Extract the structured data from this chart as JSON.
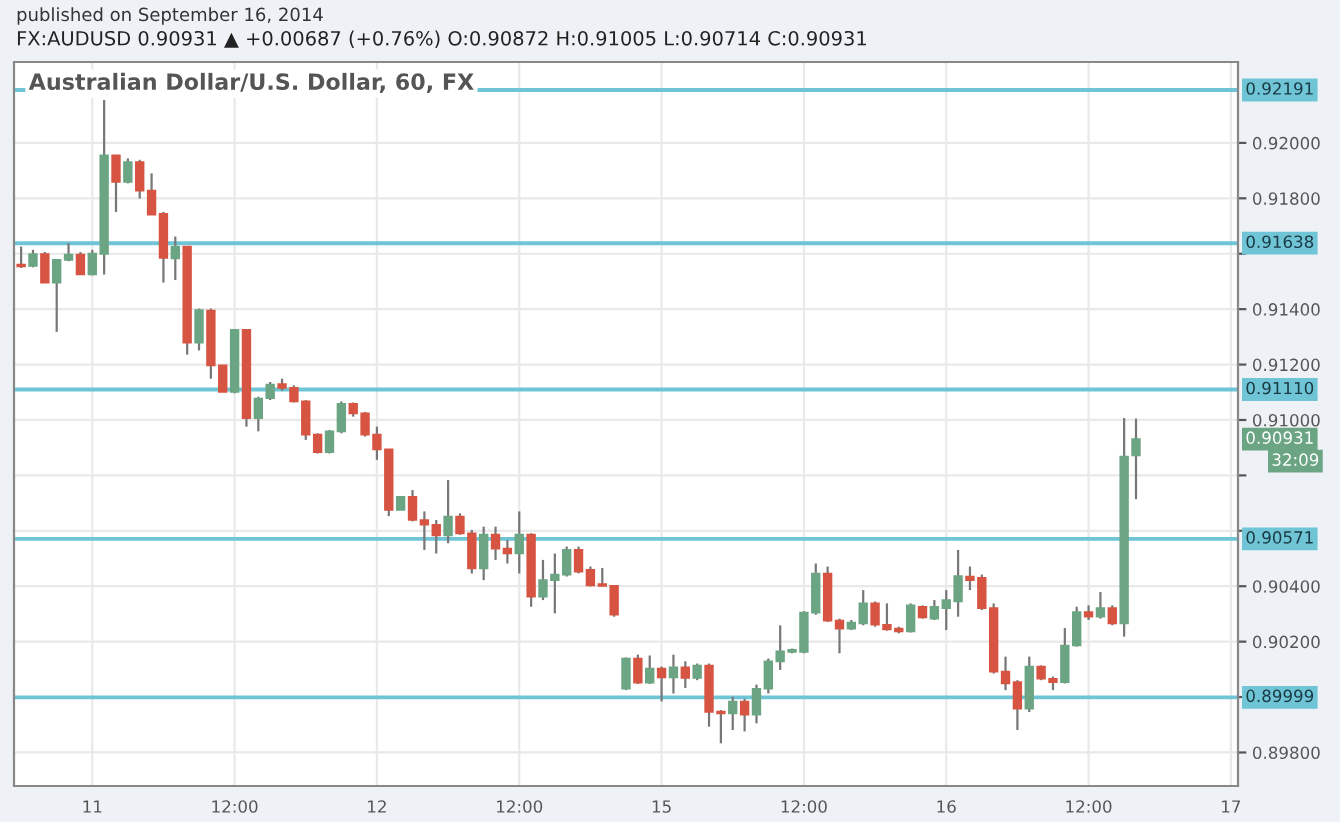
{
  "chart_data": {
    "type": "candlestick",
    "title": "Australian Dollar/U.S. Dollar, 60, FX",
    "subtitle": "FX:AUDUSD 0.90931 ▲ +0.00687 (+0.76%) O:0.90872 H:0.91005 L:0.90714 C:0.90931",
    "annotations": [
      "published on September 16, 2014",
      "0.90931",
      "32:09"
    ],
    "categories": [
      null,
      null,
      null,
      null,
      null,
      null,
      "11",
      null,
      null,
      null,
      null,
      null,
      null,
      null,
      null,
      null,
      null,
      null,
      "12:00",
      null,
      null,
      null,
      null,
      null,
      null,
      null,
      null,
      null,
      null,
      null,
      "12",
      null,
      null,
      null,
      null,
      null,
      null,
      null,
      null,
      null,
      null,
      null,
      "12:00",
      null,
      null,
      null,
      null,
      null,
      null,
      null,
      null,
      null,
      null,
      null,
      "15",
      null,
      null,
      null,
      null,
      null,
      null,
      null,
      null,
      null,
      null,
      null,
      "12:00",
      null,
      null,
      null,
      null,
      null,
      null,
      null,
      null,
      null,
      null,
      null,
      "16",
      null,
      null,
      null,
      null,
      null,
      null,
      null,
      null,
      null,
      null,
      null,
      "12:00",
      null,
      null,
      null,
      null,
      null,
      null,
      null,
      null,
      null,
      null,
      null,
      "17"
    ],
    "ohlc": [
      [
        0.91561,
        0.91626,
        0.91549,
        0.91554
      ],
      [
        0.91556,
        0.91614,
        0.91551,
        0.91599
      ],
      [
        0.91599,
        0.91606,
        0.91496,
        0.91496
      ],
      [
        0.91496,
        0.91578,
        0.91318,
        0.91578
      ],
      [
        0.91578,
        0.91638,
        0.91573,
        0.91597
      ],
      [
        0.91597,
        0.91606,
        0.91525,
        0.91525
      ],
      [
        0.91525,
        0.91614,
        0.91522,
        0.91601
      ],
      [
        0.91599,
        0.92155,
        0.91525,
        0.91955
      ],
      [
        0.91955,
        0.91955,
        0.91751,
        0.91859
      ],
      [
        0.91859,
        0.91944,
        0.91854,
        0.91931
      ],
      [
        0.91931,
        0.91939,
        0.91799,
        0.91828
      ],
      [
        0.91828,
        0.9189,
        0.91741,
        0.91741
      ],
      [
        0.91744,
        0.91751,
        0.91496,
        0.91585
      ],
      [
        0.91583,
        0.91662,
        0.91505,
        0.91626
      ],
      [
        0.91626,
        0.91626,
        0.91236,
        0.91279
      ],
      [
        0.91279,
        0.91402,
        0.91251,
        0.91397
      ],
      [
        0.91395,
        0.91402,
        0.91149,
        0.91197
      ],
      [
        0.91197,
        0.91197,
        0.91101,
        0.91101
      ],
      [
        0.91101,
        0.91325,
        0.91096,
        0.91325
      ],
      [
        0.91325,
        0.91325,
        0.90976,
        0.91007
      ],
      [
        0.91007,
        0.91084,
        0.90959,
        0.91077
      ],
      [
        0.91079,
        0.91137,
        0.91072,
        0.91128
      ],
      [
        0.9113,
        0.91149,
        0.91106,
        0.91116
      ],
      [
        0.91116,
        0.91125,
        0.91063,
        0.91067
      ],
      [
        0.91067,
        0.91072,
        0.90928,
        0.90947
      ],
      [
        0.90947,
        0.90952,
        0.90879,
        0.90884
      ],
      [
        0.90884,
        0.90964,
        0.90879,
        0.90959
      ],
      [
        0.90959,
        0.91067,
        0.90952,
        0.91058
      ],
      [
        0.91058,
        0.91063,
        0.91012,
        0.91024
      ],
      [
        0.91024,
        0.91029,
        0.9094,
        0.90947
      ],
      [
        0.90947,
        0.90976,
        0.90856,
        0.90894
      ],
      [
        0.90894,
        0.90894,
        0.90653,
        0.90675
      ],
      [
        0.90675,
        0.90723,
        0.90675,
        0.90723
      ],
      [
        0.90723,
        0.90747,
        0.90634,
        0.90639
      ],
      [
        0.90639,
        0.9067,
        0.90531,
        0.90622
      ],
      [
        0.90622,
        0.90639,
        0.90518,
        0.90583
      ],
      [
        0.90583,
        0.90783,
        0.90555,
        0.90651
      ],
      [
        0.90651,
        0.90663,
        0.90586,
        0.90591
      ],
      [
        0.90591,
        0.90603,
        0.90446,
        0.90464
      ],
      [
        0.90464,
        0.90615,
        0.90422,
        0.90586
      ],
      [
        0.90586,
        0.90615,
        0.90495,
        0.90536
      ],
      [
        0.90536,
        0.90567,
        0.90482,
        0.90518
      ],
      [
        0.90518,
        0.9067,
        0.90446,
        0.90586
      ],
      [
        0.90586,
        0.90591,
        0.90326,
        0.90362
      ],
      [
        0.90362,
        0.90495,
        0.9035,
        0.90422
      ],
      [
        0.90422,
        0.90518,
        0.90302,
        0.90442
      ],
      [
        0.90442,
        0.90543,
        0.90435,
        0.90531
      ],
      [
        0.90531,
        0.90543,
        0.90446,
        0.90453
      ],
      [
        0.90459,
        0.90471,
        0.90399,
        0.90403
      ],
      [
        0.90408,
        0.90466,
        0.90399,
        0.90401
      ],
      [
        0.90401,
        0.90401,
        0.9029,
        0.90297
      ],
      [
        0.9003,
        0.90143,
        0.90025,
        0.90139
      ],
      [
        0.90139,
        0.90153,
        0.90047,
        0.90052
      ],
      [
        0.90052,
        0.9015,
        0.90047,
        0.90103
      ],
      [
        0.90103,
        0.9011,
        0.89984,
        0.90071
      ],
      [
        0.90071,
        0.90153,
        0.90013,
        0.90107
      ],
      [
        0.90107,
        0.90129,
        0.90033,
        0.90069
      ],
      [
        0.90069,
        0.90121,
        0.90061,
        0.90114
      ],
      [
        0.90114,
        0.90121,
        0.89893,
        0.89946
      ],
      [
        0.89948,
        0.89953,
        0.89833,
        0.89941
      ],
      [
        0.89941,
        0.90001,
        0.89881,
        0.89984
      ],
      [
        0.89984,
        0.89994,
        0.89876,
        0.89936
      ],
      [
        0.89936,
        0.90045,
        0.89905,
        0.9003
      ],
      [
        0.9003,
        0.90139,
        0.90013,
        0.90129
      ],
      [
        0.90129,
        0.90259,
        0.90098,
        0.90165
      ],
      [
        0.90163,
        0.90175,
        0.90158,
        0.9017
      ],
      [
        0.90163,
        0.9031,
        0.90158,
        0.90305
      ],
      [
        0.90305,
        0.90482,
        0.90297,
        0.90446
      ],
      [
        0.90446,
        0.90471,
        0.90271,
        0.90276
      ],
      [
        0.90276,
        0.90283,
        0.90158,
        0.90247
      ],
      [
        0.90247,
        0.90278,
        0.90242,
        0.90269
      ],
      [
        0.90266,
        0.90386,
        0.90259,
        0.90338
      ],
      [
        0.90338,
        0.90345,
        0.90254,
        0.90261
      ],
      [
        0.90261,
        0.90338,
        0.9024,
        0.90244
      ],
      [
        0.90247,
        0.90254,
        0.9023,
        0.90237
      ],
      [
        0.90237,
        0.90338,
        0.90233,
        0.90331
      ],
      [
        0.90326,
        0.90331,
        0.90283,
        0.90287
      ],
      [
        0.90283,
        0.9035,
        0.90278,
        0.90326
      ],
      [
        0.90321,
        0.90386,
        0.90242,
        0.9035
      ],
      [
        0.90345,
        0.90531,
        0.9029,
        0.90437
      ],
      [
        0.90435,
        0.90471,
        0.90386,
        0.90422
      ],
      [
        0.9043,
        0.90442,
        0.90314,
        0.90321
      ],
      [
        0.90321,
        0.90338,
        0.90085,
        0.90092
      ],
      [
        0.90092,
        0.90146,
        0.90025,
        0.90049
      ],
      [
        0.90054,
        0.90061,
        0.89881,
        0.89958
      ],
      [
        0.89958,
        0.90146,
        0.89946,
        0.9011
      ],
      [
        0.9011,
        0.90114,
        0.90061,
        0.90066
      ],
      [
        0.90066,
        0.90074,
        0.90025,
        0.90054
      ],
      [
        0.90054,
        0.90249,
        0.90049,
        0.90186
      ],
      [
        0.90186,
        0.90326,
        0.90182,
        0.90307
      ],
      [
        0.90307,
        0.90331,
        0.90278,
        0.9029
      ],
      [
        0.9029,
        0.90379,
        0.90283,
        0.90321
      ],
      [
        0.90321,
        0.90331,
        0.90259,
        0.90266
      ],
      [
        0.90266,
        0.91007,
        0.90218,
        0.90868
      ],
      [
        0.90872,
        0.91005,
        0.90714,
        0.90931
      ],
      null,
      null,
      null,
      null,
      null,
      null,
      null,
      null
    ],
    "colors": [
      "#d75442",
      "#6ba583",
      "#d75442",
      "#6ba583",
      "#6ba583",
      "#d75442",
      "#6ba583",
      "#6ba583",
      "#d75442",
      "#6ba583",
      "#d75442",
      "#d75442",
      "#d75442",
      "#6ba583",
      "#d75442",
      "#6ba583",
      "#d75442",
      "#d75442",
      "#6ba583",
      "#d75442",
      "#6ba583",
      "#6ba583",
      "#d75442",
      "#d75442",
      "#d75442",
      "#d75442",
      "#6ba583",
      "#6ba583",
      "#d75442",
      "#d75442",
      "#d75442",
      "#d75442",
      "#6ba583",
      "#d75442",
      "#d75442",
      "#d75442",
      "#6ba583",
      "#d75442",
      "#d75442",
      "#6ba583",
      "#d75442",
      "#d75442",
      "#6ba583",
      "#d75442",
      "#6ba583",
      "#6ba583",
      "#6ba583",
      "#d75442",
      "#d75442",
      "#d75442",
      "#d75442",
      "#6ba583",
      "#d75442",
      "#6ba583",
      "#d75442",
      "#6ba583",
      "#d75442",
      "#6ba583",
      "#d75442",
      "#d75442",
      "#6ba583",
      "#d75442",
      "#6ba583",
      "#6ba583",
      "#6ba583",
      "#6ba583",
      "#6ba583",
      "#6ba583",
      "#d75442",
      "#d75442",
      "#6ba583",
      "#6ba583",
      "#d75442",
      "#d75442",
      "#d75442",
      "#6ba583",
      "#d75442",
      "#6ba583",
      "#6ba583",
      "#6ba583",
      "#d75442",
      "#d75442",
      "#d75442",
      "#d75442",
      "#d75442",
      "#6ba583",
      "#d75442",
      "#d75442",
      "#6ba583",
      "#6ba583",
      "#d75442",
      "#6ba583",
      "#d75442",
      "#6ba583",
      "#6ba583",
      null,
      null,
      null,
      null,
      null,
      null,
      null,
      null
    ],
    "ylim": [
      0.89679,
      0.92292
    ],
    "yticks": [
      {
        "value": 0.898,
        "label": "0.89800"
      },
      {
        "value": 0.9,
        "label": null
      },
      {
        "value": 0.902,
        "label": "0.90200"
      },
      {
        "value": 0.904,
        "label": "0.90400"
      },
      {
        "value": 0.906,
        "label": null
      },
      {
        "value": 0.908,
        "label": null
      },
      {
        "value": 0.91,
        "label": "0.91000"
      },
      {
        "value": 0.912,
        "label": "0.91200"
      },
      {
        "value": 0.914,
        "label": "0.91400"
      },
      {
        "value": 0.916,
        "label": null
      },
      {
        "value": 0.918,
        "label": "0.91800"
      },
      {
        "value": 0.92,
        "label": "0.92000"
      }
    ],
    "ref_lines": [
      {
        "axis": "y",
        "value": 0.92191,
        "label": "0.92191",
        "color": "#6fc5d6"
      },
      {
        "axis": "y",
        "value": 0.91638,
        "label": "0.91638",
        "color": "#6fc5d6"
      },
      {
        "axis": "y",
        "value": 0.9111,
        "label": "0.91110",
        "color": "#6fc5d6"
      },
      {
        "axis": "y",
        "value": 0.90571,
        "label": "0.90571",
        "color": "#6fc5d6"
      },
      {
        "axis": "y",
        "value": 0.89999,
        "label": "0.89999",
        "color": "#6fc5d6"
      }
    ],
    "grid": true,
    "legend": false
  }
}
